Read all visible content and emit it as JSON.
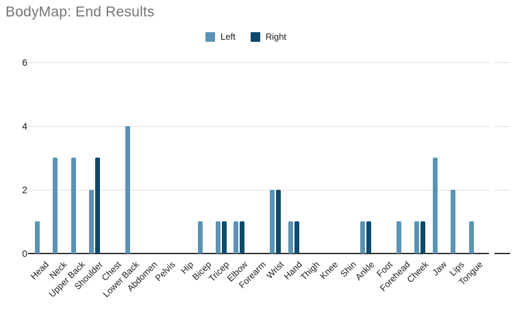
{
  "chart_data": {
    "type": "bar",
    "title": "BodyMap: End Results",
    "title_color": "#757575",
    "legend_position": "top",
    "grid": true,
    "yticks": [
      0,
      2,
      4,
      6
    ],
    "ylim": [
      0,
      6
    ],
    "xlabel": "",
    "ylabel": "",
    "categories": [
      "Head",
      "Neck",
      "Upper Back",
      "Shoulder",
      "Chest",
      "Lower Back",
      "Abdomen",
      "Pelvis",
      "Hip",
      "Bicep",
      "Tricep",
      "Elbow",
      "Forearm",
      "Wrist",
      "Hand",
      "Thigh",
      "Knee",
      "Shin",
      "Ankle",
      "Foot",
      "Forehead",
      "Cheek",
      "Jaw",
      "Lips",
      "Tongue"
    ],
    "series": [
      {
        "name": "Left",
        "color": "#5b93b4",
        "values": [
          1,
          3,
          3,
          2,
          0,
          4,
          0,
          0,
          0,
          1,
          1,
          1,
          0,
          2,
          1,
          0,
          0,
          0,
          1,
          0,
          1,
          1,
          3,
          2,
          1
        ]
      },
      {
        "name": "Right",
        "color": "#0d4a6b",
        "values": [
          0,
          0,
          0,
          3,
          0,
          0,
          0,
          0,
          0,
          0,
          1,
          1,
          0,
          2,
          1,
          0,
          0,
          0,
          1,
          0,
          0,
          1,
          0,
          0,
          0
        ]
      }
    ]
  }
}
